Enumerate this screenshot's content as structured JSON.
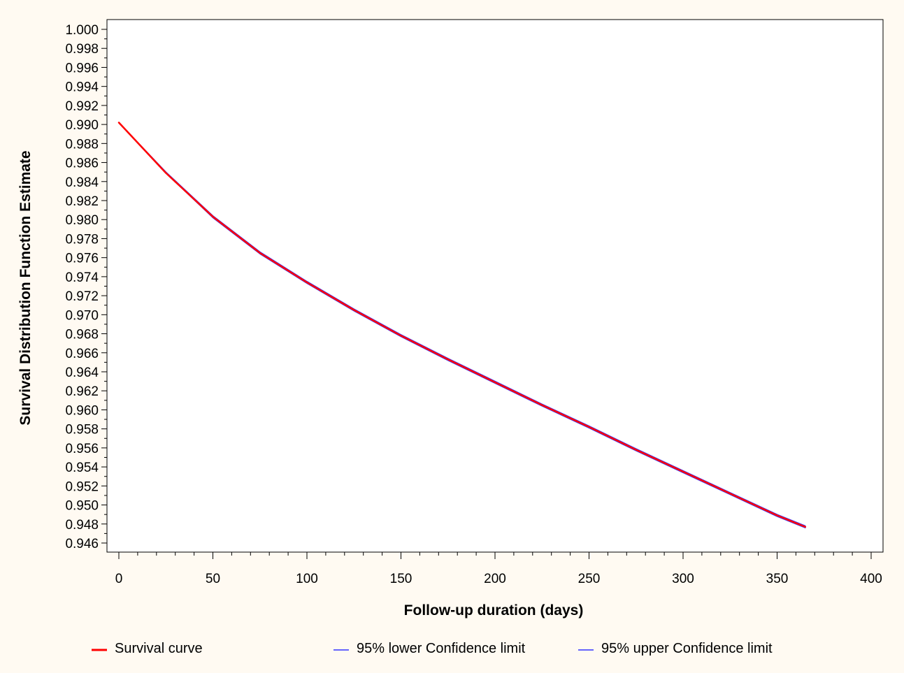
{
  "chart_data": {
    "type": "line",
    "title": "",
    "xlabel": "Follow-up duration (days)",
    "ylabel": "Survival Distribution Function Estimate",
    "xlim": [
      -5,
      405
    ],
    "ylim": [
      0.945,
      1.001
    ],
    "x_ticks": [
      0,
      50,
      100,
      150,
      200,
      250,
      300,
      350,
      400
    ],
    "x_tick_labels": [
      "0",
      "50",
      "100",
      "150",
      "200",
      "250",
      "300",
      "350",
      "400"
    ],
    "y_ticks": [
      0.946,
      0.948,
      0.95,
      0.952,
      0.954,
      0.956,
      0.958,
      0.96,
      0.962,
      0.964,
      0.966,
      0.968,
      0.97,
      0.972,
      0.974,
      0.976,
      0.978,
      0.98,
      0.982,
      0.984,
      0.986,
      0.988,
      0.99,
      0.992,
      0.994,
      0.996,
      0.998,
      1.0
    ],
    "y_tick_labels": [
      "0.946",
      "0.948",
      "0.950",
      "0.952",
      "0.954",
      "0.956",
      "0.958",
      "0.960",
      "0.962",
      "0.964",
      "0.966",
      "0.968",
      "0.970",
      "0.972",
      "0.974",
      "0.976",
      "0.978",
      "0.980",
      "0.982",
      "0.984",
      "0.986",
      "0.988",
      "0.990",
      "0.992",
      "0.994",
      "0.996",
      "0.998",
      "1.000"
    ],
    "grid": false,
    "legend_position": "bottom",
    "x": [
      0,
      25,
      50,
      75,
      100,
      125,
      150,
      175,
      200,
      225,
      250,
      275,
      300,
      325,
      350,
      365
    ],
    "series": [
      {
        "name": "Survival curve",
        "color": "#ff0000",
        "values": [
          0.9902,
          0.9849,
          0.9803,
          0.9765,
          0.9734,
          0.9705,
          0.9678,
          0.9653,
          0.9629,
          0.9605,
          0.9582,
          0.9558,
          0.9535,
          0.9512,
          0.9489,
          0.9477
        ]
      },
      {
        "name": "95% lower Confidence limit",
        "color": "#3333ff",
        "values": [
          0.9902,
          0.9849,
          0.9802,
          0.9764,
          0.9733,
          0.9704,
          0.9677,
          0.9652,
          0.9628,
          0.9604,
          0.9581,
          0.9557,
          0.9534,
          0.9511,
          0.9488,
          0.9476
        ]
      },
      {
        "name": "95% upper Confidence limit",
        "color": "#3333ff",
        "values": [
          0.9902,
          0.985,
          0.9804,
          0.9766,
          0.9735,
          0.9706,
          0.9679,
          0.9654,
          0.963,
          0.9606,
          0.9583,
          0.9559,
          0.9536,
          0.9513,
          0.949,
          0.9478
        ]
      }
    ]
  }
}
